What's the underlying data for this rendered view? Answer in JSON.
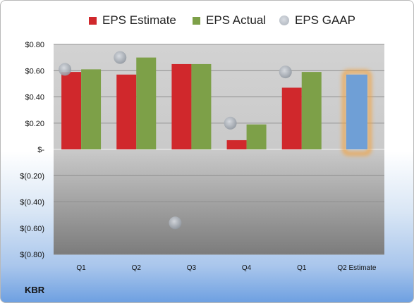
{
  "company": "KBR",
  "legend": {
    "estimate": "EPS Estimate",
    "actual": "EPS Actual",
    "gaap": "EPS GAAP"
  },
  "colors": {
    "estimate": "#d0282c",
    "actual": "#7da048",
    "gaap": "#9aa1aa",
    "forecast": "#6f9fd6",
    "forecast_glow": "#f3a23c"
  },
  "chart_data": {
    "type": "bar",
    "categories": [
      "Q1",
      "Q2",
      "Q3",
      "Q4",
      "Q1",
      "Q2 Estimate"
    ],
    "series": [
      {
        "name": "EPS Estimate",
        "values": [
          0.59,
          0.57,
          0.65,
          0.07,
          0.47,
          null
        ]
      },
      {
        "name": "EPS Actual",
        "values": [
          0.61,
          0.7,
          0.65,
          0.19,
          0.59,
          null
        ]
      },
      {
        "name": "EPS GAAP",
        "values": [
          0.61,
          0.7,
          -0.56,
          0.2,
          0.59,
          null
        ]
      }
    ],
    "forecast": {
      "category": "Q2 Estimate",
      "value": 0.57
    },
    "ylim": [
      -0.8,
      0.8
    ],
    "yticks": [
      {
        "value": 0.8,
        "label": "$0.80"
      },
      {
        "value": 0.6,
        "label": "$0.60"
      },
      {
        "value": 0.4,
        "label": "$0.40"
      },
      {
        "value": 0.2,
        "label": "$0.20"
      },
      {
        "value": 0.0,
        "label": "$-"
      },
      {
        "value": -0.2,
        "label": "$(0.20)"
      },
      {
        "value": -0.4,
        "label": "$(0.40)"
      },
      {
        "value": -0.6,
        "label": "$(0.60)"
      },
      {
        "value": -0.8,
        "label": "$(0.80)"
      }
    ],
    "grid": true,
    "legend_position": "top"
  }
}
